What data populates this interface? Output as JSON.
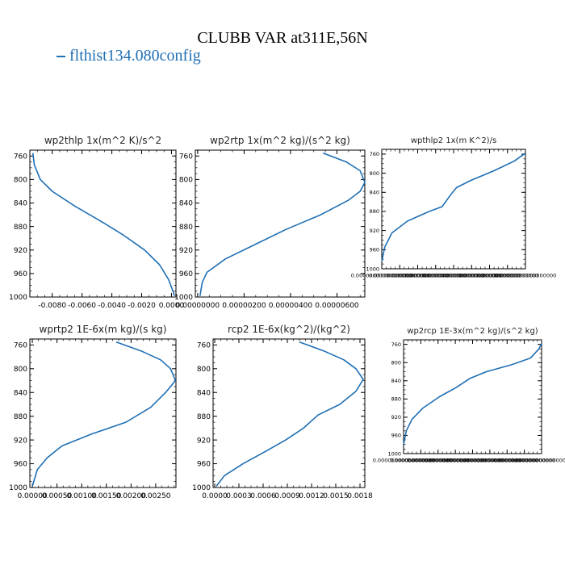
{
  "title": "CLUBB VAR at311E,56N",
  "legend": {
    "label": "flthist134.080config",
    "color": "#1f6fb4"
  },
  "chart_data": [
    {
      "type": "line",
      "title": "wp2thlp  1x(m^2 K)/s^2",
      "xlim": [
        -0.0095,
        0.0003
      ],
      "xticks": [
        -0.008,
        -0.006,
        -0.004,
        -0.002,
        0.0
      ],
      "xticklabels": [
        "-0.0080",
        "-0.0060",
        "-0.0040",
        "-0.0020",
        "0.0000"
      ],
      "ylim": [
        1000,
        750
      ],
      "yticks": [
        760,
        800,
        840,
        880,
        920,
        960,
        1000
      ],
      "yticklabels": [
        "760",
        "800",
        "840",
        "880",
        "920",
        "960",
        "1000"
      ],
      "series": [
        {
          "color": "#1f6fb4",
          "x": [
            -0.0093,
            -0.0092,
            -0.0088,
            -0.008,
            -0.0065,
            -0.0048,
            -0.0032,
            -0.0018,
            -0.0008,
            -0.0002,
            0.0001,
            0.0002
          ],
          "y": [
            755,
            775,
            800,
            820,
            845,
            870,
            895,
            920,
            945,
            970,
            990,
            998
          ]
        }
      ]
    },
    {
      "type": "line",
      "title": "wp2rtp  1x(m^2 kg)/(s^2 kg)",
      "xlim": [
        -1e-07,
        7.2e-06
      ],
      "xticks": [
        0.0,
        2e-06,
        4e-06,
        6e-06
      ],
      "xticklabels": [
        "0.00000000",
        "0.00000200",
        "0.00000400",
        "0.00000600"
      ],
      "ylim": [
        1000,
        750
      ],
      "yticks": [
        760,
        800,
        840,
        880,
        920,
        960,
        1000
      ],
      "yticklabels": [
        "760",
        "800",
        "840",
        "880",
        "920",
        "960",
        "1000"
      ],
      "series": [
        {
          "color": "#1f6fb4",
          "x": [
            5.4e-06,
            6.4e-06,
            7e-06,
            7.2e-06,
            7e-06,
            6.5e-06,
            5.3e-06,
            3.8e-06,
            2.5e-06,
            1.2e-06,
            4e-07,
            2e-07,
            1e-07
          ],
          "y": [
            755,
            770,
            785,
            805,
            820,
            835,
            860,
            885,
            910,
            935,
            958,
            975,
            998
          ]
        }
      ]
    },
    {
      "type": "line",
      "title": "wpthlp2  1x(m K^2)/s",
      "xlim": [
        0.0,
        1.0
      ],
      "xticks": [
        0.0,
        0.125,
        0.25,
        0.375,
        0.5,
        0.625,
        0.75,
        0.875,
        1.0
      ],
      "xticklabels": [
        "0.00000000000000000",
        "0.00000000000000000",
        "0.00000000000000000",
        "0.00000000000000000",
        "0.00000000000000000",
        "0.00000000000000000",
        "0.00000000000000000",
        "0.00000000000000000",
        "0.00000000000000000"
      ],
      "ylim": [
        1000,
        750
      ],
      "yticks": [
        760,
        800,
        840,
        880,
        920,
        960,
        1000
      ],
      "yticklabels": [
        "760",
        "800",
        "840",
        "880",
        "920",
        "960",
        "1000"
      ],
      "series": [
        {
          "color": "#1f6fb4",
          "x": [
            1.0,
            0.92,
            0.78,
            0.62,
            0.52,
            0.48,
            0.42,
            0.33,
            0.18,
            0.07,
            0.02,
            0.0
          ],
          "y": [
            758,
            775,
            795,
            815,
            830,
            845,
            870,
            880,
            900,
            925,
            955,
            985
          ]
        }
      ]
    },
    {
      "type": "line",
      "title": "wprtp2  1E-6x(m kg)/(s kg)",
      "xlim": [
        -5e-05,
        0.00291
      ],
      "xticks": [
        0.0,
        0.0005,
        0.001,
        0.0015,
        0.002,
        0.0025
      ],
      "xticklabels": [
        "0.00000",
        "0.00050",
        "0.00100",
        "0.00150",
        "0.00200",
        "0.00250"
      ],
      "ylim": [
        1000,
        750
      ],
      "yticks": [
        760,
        800,
        840,
        880,
        920,
        960,
        1000
      ],
      "yticklabels": [
        "760",
        "800",
        "840",
        "880",
        "920",
        "960",
        "1000"
      ],
      "series": [
        {
          "color": "#1f6fb4",
          "x": [
            0.0017,
            0.0022,
            0.0026,
            0.0028,
            0.0029,
            0.0027,
            0.0024,
            0.0019,
            0.0012,
            0.0006,
            0.0003,
            0.0001,
            0.0
          ],
          "y": [
            755,
            770,
            785,
            800,
            820,
            840,
            865,
            890,
            910,
            930,
            950,
            970,
            998
          ]
        }
      ]
    },
    {
      "type": "line",
      "title": "rcp2  1E-6x(kg^2)/(kg^2)",
      "xlim": [
        -2e-05,
        0.00186
      ],
      "xticks": [
        0.0,
        0.0003,
        0.0006,
        0.0009,
        0.0012,
        0.0015,
        0.0018
      ],
      "xticklabels": [
        "0.0000",
        "0.0003",
        "0.0006",
        "0.0009",
        "0.0012",
        "0.0015",
        "0.0018"
      ],
      "ylim": [
        1000,
        750
      ],
      "yticks": [
        760,
        800,
        840,
        880,
        920,
        960,
        1000
      ],
      "yticklabels": [
        "760",
        "800",
        "840",
        "880",
        "920",
        "960",
        "1000"
      ],
      "series": [
        {
          "color": "#1f6fb4",
          "x": [
            0.00105,
            0.00135,
            0.0016,
            0.00175,
            0.00184,
            0.00175,
            0.00155,
            0.00128,
            0.0011,
            0.00088,
            0.00062,
            0.00035,
            0.00012,
            2e-05
          ],
          "y": [
            755,
            770,
            785,
            800,
            818,
            838,
            860,
            878,
            900,
            920,
            940,
            960,
            980,
            998
          ]
        }
      ]
    },
    {
      "type": "line",
      "title": "wp2rcp  1E-3x(m^2 kg)/(s^2 kg)",
      "xlim": [
        0.0,
        1.0
      ],
      "xticks": [
        0.0,
        0.125,
        0.25,
        0.375,
        0.5,
        0.625,
        0.75,
        0.875,
        1.0
      ],
      "xticklabels": [
        "0.00000000000000000",
        "0.00000000000000000",
        "0.00000000000000000",
        "0.00000000000000000",
        "0.00000000000000000",
        "0.00000000000000000",
        "0.00000000000000000",
        "0.00000000000000000",
        "0.00000000000000000"
      ],
      "ylim": [
        1000,
        750
      ],
      "yticks": [
        760,
        800,
        840,
        880,
        920,
        960,
        1000
      ],
      "yticklabels": [
        "760",
        "800",
        "840",
        "880",
        "920",
        "960",
        "1000"
      ],
      "series": [
        {
          "color": "#1f6fb4",
          "x": [
            1.0,
            0.98,
            0.92,
            0.78,
            0.6,
            0.48,
            0.38,
            0.26,
            0.14,
            0.06,
            0.02,
            0.0
          ],
          "y": [
            758,
            770,
            790,
            805,
            820,
            835,
            855,
            875,
            900,
            925,
            950,
            980
          ]
        }
      ]
    }
  ]
}
